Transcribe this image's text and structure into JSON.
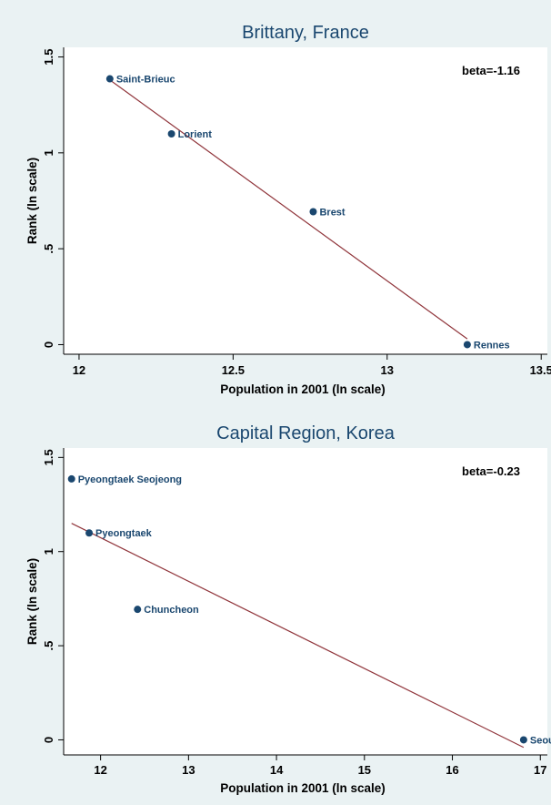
{
  "colors": {
    "background": "#eaf2f3",
    "plot_bg": "#ffffff",
    "marker": "#1a476f",
    "fit_line": "#90353b",
    "text": "#000000"
  },
  "chart_data": [
    {
      "type": "scatter",
      "title": "Brittany, France",
      "xlabel": "Population in 2001 (ln scale)",
      "ylabel": "Rank (ln scale)",
      "annotation": "beta=-1.16",
      "xlim": [
        11.95,
        13.52
      ],
      "ylim": [
        -0.05,
        1.55
      ],
      "xticks": [
        12,
        12.5,
        13,
        13.5
      ],
      "xtick_labels": [
        "12",
        "12.5",
        "13",
        "13.5"
      ],
      "yticks": [
        0,
        0.5,
        1,
        1.5
      ],
      "ytick_labels": [
        "0",
        ".5",
        "1",
        "1.5"
      ],
      "grid": false,
      "points": [
        {
          "label": "Saint-Brieuc",
          "x": 12.1,
          "y": 1.386
        },
        {
          "label": "Lorient",
          "x": 12.3,
          "y": 1.099
        },
        {
          "label": "Brest",
          "x": 12.76,
          "y": 0.693
        },
        {
          "label": "Rennes",
          "x": 13.26,
          "y": 0.0
        }
      ],
      "fit_line": [
        [
          12.1,
          1.38
        ],
        [
          13.26,
          0.03
        ]
      ]
    },
    {
      "type": "scatter",
      "title": "Capital Region, Korea",
      "xlabel": "Population in 2001 (ln scale)",
      "ylabel": "Rank (ln scale)",
      "annotation": "beta=-0.23",
      "xlim": [
        11.58,
        17.08
      ],
      "ylim": [
        -0.08,
        1.55
      ],
      "xticks": [
        12,
        13,
        14,
        15,
        16,
        17
      ],
      "xtick_labels": [
        "12",
        "13",
        "14",
        "15",
        "16",
        "17"
      ],
      "yticks": [
        0,
        0.5,
        1,
        1.5
      ],
      "ytick_labels": [
        "0",
        ".5",
        "1",
        "1.5"
      ],
      "grid": false,
      "points": [
        {
          "label": "Pyeongtaek Seojeong",
          "x": 11.67,
          "y": 1.386
        },
        {
          "label": "Pyeongtaek",
          "x": 11.87,
          "y": 1.099
        },
        {
          "label": "Chuncheon",
          "x": 12.42,
          "y": 0.693
        },
        {
          "label": "Seoul",
          "x": 16.81,
          "y": 0.0
        }
      ],
      "fit_line": [
        [
          11.67,
          1.15
        ],
        [
          16.81,
          -0.04
        ]
      ]
    }
  ]
}
